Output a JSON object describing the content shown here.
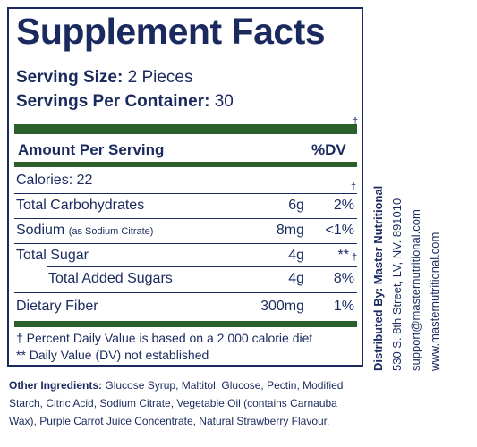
{
  "title": "Supplement Facts",
  "serving_size": {
    "label": "Serving Size:",
    "value": "2 Pieces"
  },
  "servings_per_container": {
    "label": "Servings Per Container:",
    "value": "30"
  },
  "header": {
    "amount_per_serving": "Amount Per Serving",
    "dv": "%DV"
  },
  "dagger": "†",
  "rows": [
    {
      "name": "Calories: 22",
      "note": "",
      "amount": "",
      "dv": ""
    },
    {
      "name": "Total Carbohydrates",
      "note": "",
      "amount": "6g",
      "dv": "2%"
    },
    {
      "name": "Sodium",
      "note": "(as Sodium Citrate)",
      "amount": "8mg",
      "dv": "<1%"
    },
    {
      "name": "Total Sugar",
      "note": "",
      "amount": "4g",
      "dv": "**"
    },
    {
      "name": "Total Added Sugars",
      "note": "",
      "amount": "4g",
      "dv": "8%"
    },
    {
      "name": "Dietary Fiber",
      "note": "",
      "amount": "300mg",
      "dv": "1%"
    }
  ],
  "footnotes": [
    "† Percent Daily Value is based on a 2,000 calorie diet",
    "** Daily Value (DV) not established"
  ],
  "other_ingredients": {
    "label": "Other Ingredients:",
    "text": "Glucose Syrup, Maltitol, Glucose, Pectin, Modified Starch, Citric Acid, Sodium Citrate, Vegetable Oil (contains Carnauba Wax), Purple Carrot Juice Concentrate, Natural Strawberry Flavour."
  },
  "distributor": {
    "label": "Distributed By: Master Nutritional",
    "address": "530 S. 8th Street, LV, NV. 891010",
    "email": "support@masternutritional.com",
    "website": "www.masternutritional.com"
  },
  "colors": {
    "navy": "#1a2a5e",
    "green": "#2b5f2b"
  }
}
